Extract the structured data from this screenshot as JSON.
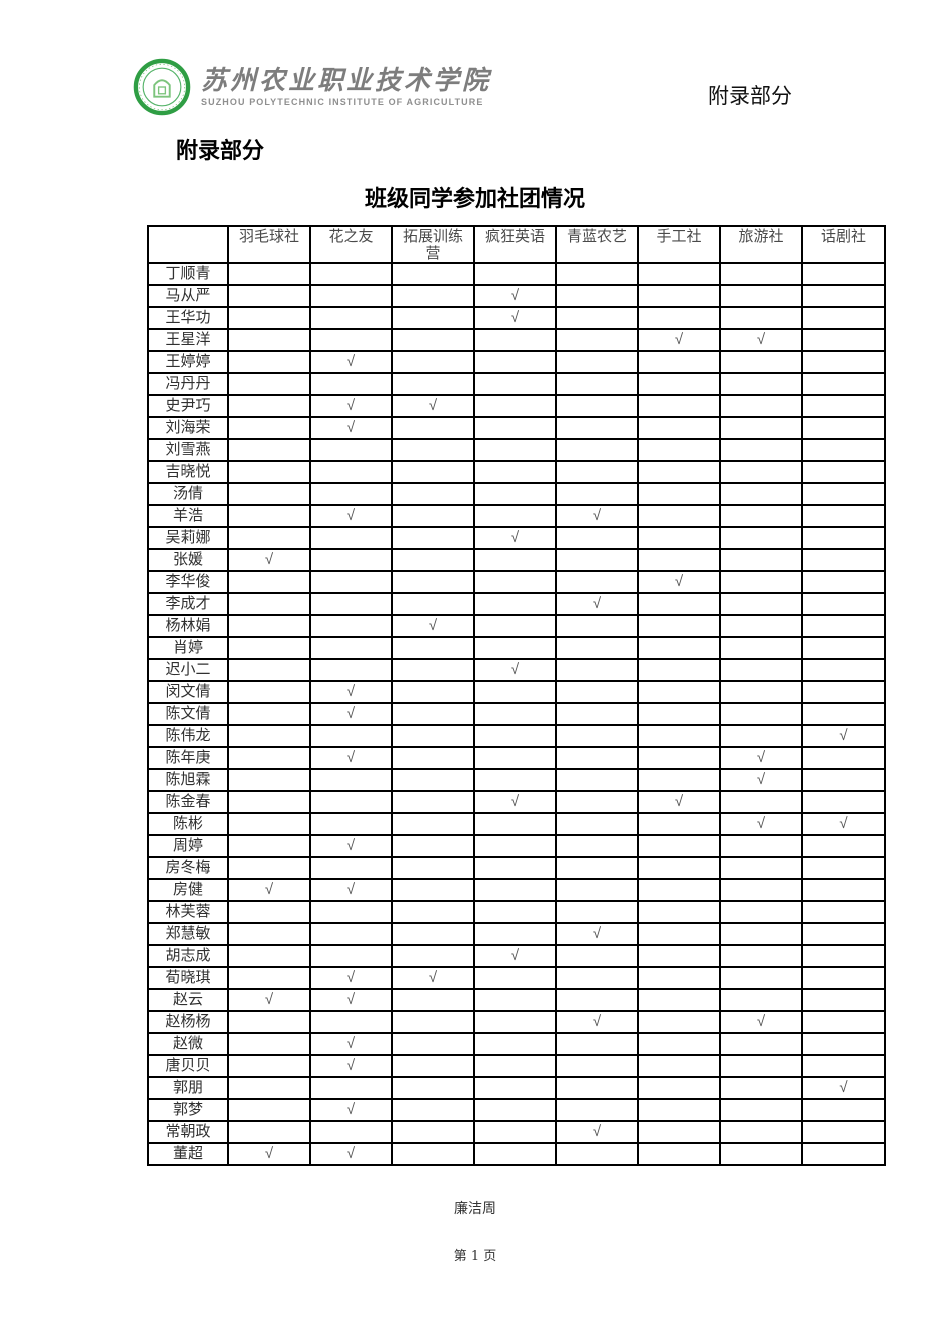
{
  "logo": {
    "cn_name": "苏州农业职业技术学院",
    "en_name": "SUZHOU POLYTECHNIC INSTITUTE OF AGRICULTURE",
    "ring_color": "#2f9e44",
    "inner_color": "#7cc47c"
  },
  "header": {
    "right_text": "附录部分"
  },
  "content": {
    "section_heading": "附录部分",
    "table_title": "班级同学参加社团情况"
  },
  "table": {
    "check_symbol": "√",
    "columns": [
      "",
      "羽毛球社",
      "花之友",
      "拓展训练营",
      "疯狂英语",
      "青蓝农艺",
      "手工社",
      "旅游社",
      "话剧社"
    ],
    "rows": [
      {
        "name": "丁顺青",
        "checks": []
      },
      {
        "name": "马从严",
        "checks": [
          4
        ]
      },
      {
        "name": "王华功",
        "checks": [
          4
        ]
      },
      {
        "name": "王星洋",
        "checks": [
          6,
          7
        ]
      },
      {
        "name": "王婷婷",
        "checks": [
          2
        ]
      },
      {
        "name": "冯丹丹",
        "checks": []
      },
      {
        "name": "史尹巧",
        "checks": [
          2,
          3
        ]
      },
      {
        "name": "刘海荣",
        "checks": [
          2
        ]
      },
      {
        "name": "刘雪燕",
        "checks": []
      },
      {
        "name": "吉晓悦",
        "checks": []
      },
      {
        "name": "汤倩",
        "checks": []
      },
      {
        "name": "羊浩",
        "checks": [
          2,
          5
        ]
      },
      {
        "name": "吴莉娜",
        "checks": [
          4
        ]
      },
      {
        "name": "张媛",
        "checks": [
          1
        ]
      },
      {
        "name": "李华俊",
        "checks": [
          6
        ]
      },
      {
        "name": "李成才",
        "checks": [
          5
        ]
      },
      {
        "name": "杨林娟",
        "checks": [
          3
        ]
      },
      {
        "name": "肖婷",
        "checks": []
      },
      {
        "name": "迟小二",
        "checks": [
          4
        ]
      },
      {
        "name": "闵文倩",
        "checks": [
          2
        ]
      },
      {
        "name": "陈文倩",
        "checks": [
          2
        ]
      },
      {
        "name": "陈伟龙",
        "checks": [
          8
        ]
      },
      {
        "name": "陈年庚",
        "checks": [
          2,
          7
        ]
      },
      {
        "name": "陈旭霖",
        "checks": [
          7
        ]
      },
      {
        "name": "陈金春",
        "checks": [
          4,
          6
        ]
      },
      {
        "name": "陈彬",
        "checks": [
          7,
          8
        ]
      },
      {
        "name": "周婷",
        "checks": [
          2
        ]
      },
      {
        "name": "房冬梅",
        "checks": []
      },
      {
        "name": "房健",
        "checks": [
          1,
          2
        ]
      },
      {
        "name": "林芙蓉",
        "checks": []
      },
      {
        "name": "郑慧敏",
        "checks": [
          5
        ]
      },
      {
        "name": "胡志成",
        "checks": [
          4
        ]
      },
      {
        "name": "荀晓琪",
        "checks": [
          2,
          3
        ]
      },
      {
        "name": "赵云",
        "checks": [
          1,
          2
        ]
      },
      {
        "name": "赵杨杨",
        "checks": [
          5,
          7
        ]
      },
      {
        "name": "赵微",
        "checks": [
          2
        ]
      },
      {
        "name": "唐贝贝",
        "checks": [
          2
        ]
      },
      {
        "name": "郭朋",
        "checks": [
          8
        ]
      },
      {
        "name": "郭梦",
        "checks": [
          2
        ]
      },
      {
        "name": "常朝政",
        "checks": [
          5
        ]
      },
      {
        "name": "董超",
        "checks": [
          1,
          2
        ]
      }
    ]
  },
  "footer": {
    "note": "廉洁周",
    "page_number": "第 1 页"
  }
}
